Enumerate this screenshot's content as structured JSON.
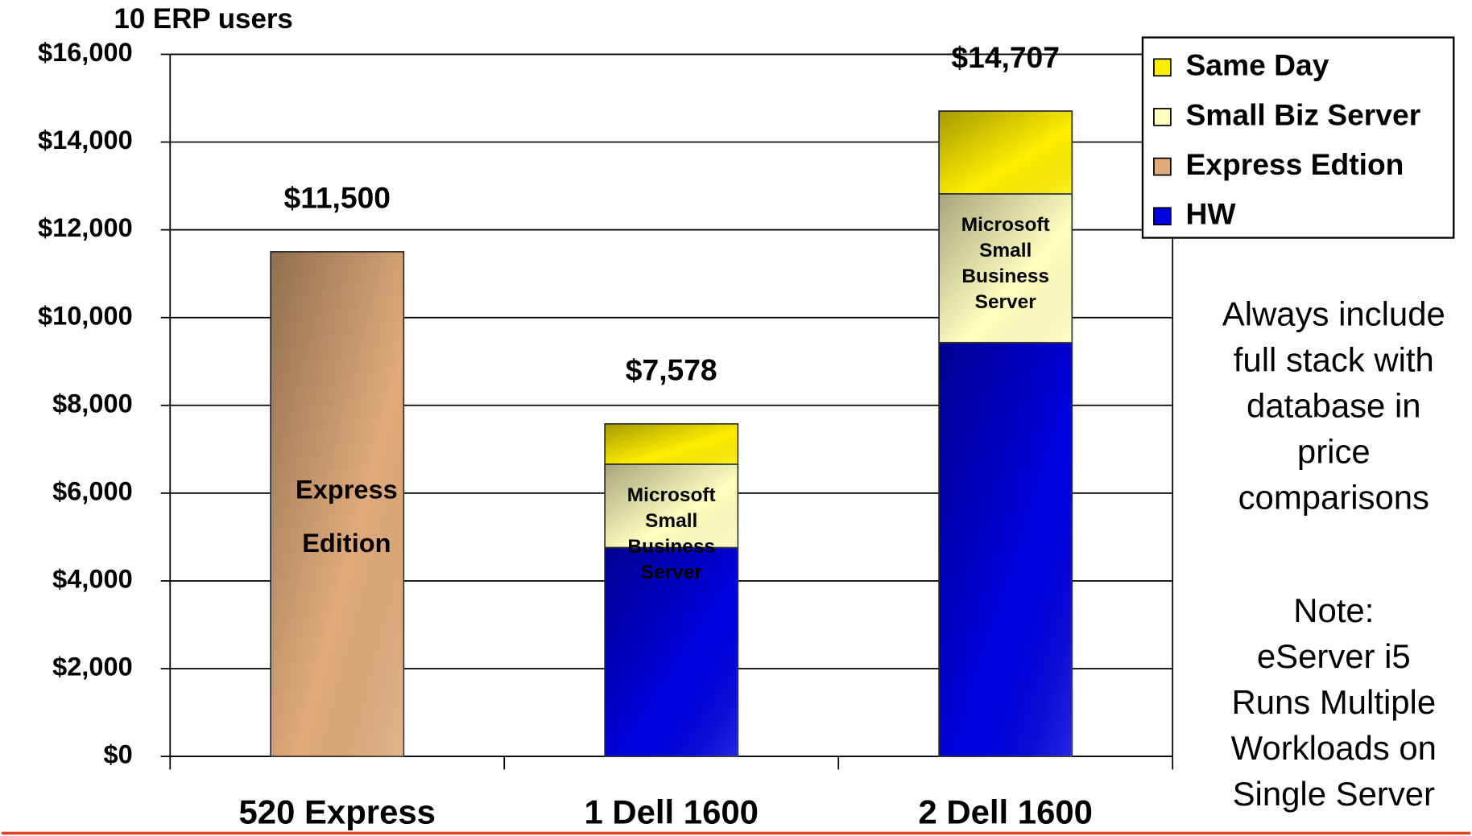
{
  "chart_data": {
    "type": "stacked_bar",
    "title": "10 ERP users",
    "categories": [
      "520 Express",
      "1 Dell 1600",
      "2 Dell 1600"
    ],
    "series": [
      {
        "name": "HW",
        "color": "#0000e0",
        "values": [
          null,
          4760,
          9430
        ]
      },
      {
        "name": "Express Edtion",
        "color": "#e0aa7a",
        "values": [
          11500,
          null,
          null
        ]
      },
      {
        "name": "Small Biz Server",
        "color": "#ffffc0",
        "values": [
          null,
          1900,
          3390
        ]
      },
      {
        "name": "Same Day",
        "color": "#ffee00",
        "values": [
          null,
          918,
          1887
        ]
      }
    ],
    "total_labels": [
      "$11,500",
      "$7,578",
      "$14,707"
    ],
    "segment_labels": [
      [
        "Express",
        "Edition"
      ],
      [
        "Microsoft",
        "Small",
        "Business",
        "Server"
      ],
      [
        "Microsoft",
        "Small",
        "Business",
        "Server"
      ]
    ],
    "ylim": [
      0,
      16000
    ],
    "yticks": [
      {
        "value": 0,
        "label": "$0"
      },
      {
        "value": 2000,
        "label": "$2,000"
      },
      {
        "value": 4000,
        "label": "$4,000"
      },
      {
        "value": 6000,
        "label": "$6,000"
      },
      {
        "value": 8000,
        "label": "$8,000"
      },
      {
        "value": 10000,
        "label": "$10,000"
      },
      {
        "value": 12000,
        "label": "$12,000"
      },
      {
        "value": 14000,
        "label": "$14,000"
      },
      {
        "value": 16000,
        "label": "$16,000"
      }
    ],
    "grid": true,
    "legend": "top-right",
    "notes": [
      [
        "Always include",
        "full stack with",
        "database in",
        "price",
        "comparisons"
      ],
      [
        "Note:",
        "eServer i5",
        "Runs Multiple",
        "Workloads on",
        "Single Server"
      ]
    ]
  }
}
